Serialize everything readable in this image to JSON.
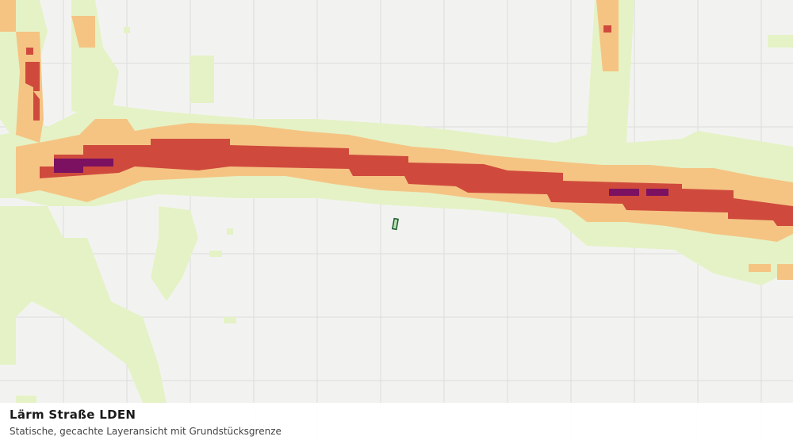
{
  "legend_panel": {
    "title": "Lärm Straße LDEN",
    "subtitle": "Statische, gecachte Layeransicht mit Grundstücksgrenze"
  }
}
